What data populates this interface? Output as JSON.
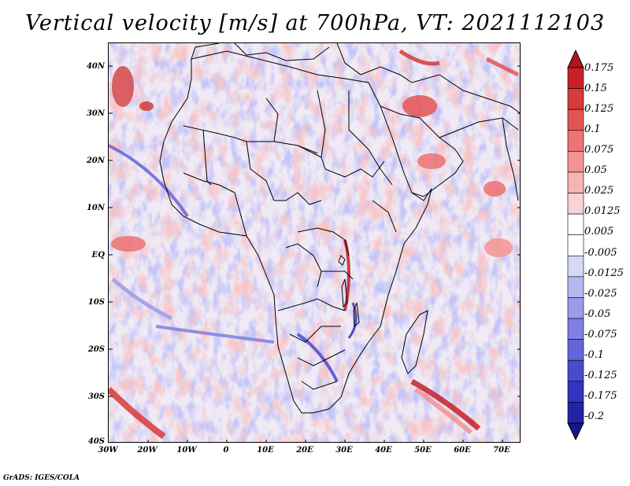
{
  "title": "Vertical velocity [m/s] at 700hPa, VT: 2021112103",
  "footer": "GrADS: IGES/COLA",
  "map": {
    "lat_labels": [
      "40N",
      "30N",
      "20N",
      "10N",
      "EQ",
      "10S",
      "20S",
      "30S",
      "40S"
    ],
    "lon_labels": [
      "30W",
      "20W",
      "10W",
      "0",
      "10E",
      "20E",
      "30E",
      "40E",
      "50E",
      "60E",
      "70E"
    ]
  },
  "colorbar": {
    "labels": [
      "0.175",
      "0.15",
      "0.125",
      "0.1",
      "0.075",
      "0.05",
      "0.025",
      "0.0125",
      "0.005",
      "-0.005",
      "-0.0125",
      "-0.025",
      "-0.05",
      "-0.075",
      "-0.1",
      "-0.125",
      "-0.175",
      "-0.2"
    ],
    "colors": [
      "#b1141e",
      "#c72127",
      "#d63a3a",
      "#e45454",
      "#ee7272",
      "#f39494",
      "#f7b4b4",
      "#fad2d2",
      "#ffffff",
      "#ffffff",
      "#d7d7f8",
      "#b7b7f2",
      "#9b9bec",
      "#7f7fe4",
      "#6565da",
      "#4a4acd",
      "#3333bd",
      "#2323a6",
      "#17178c"
    ]
  }
}
